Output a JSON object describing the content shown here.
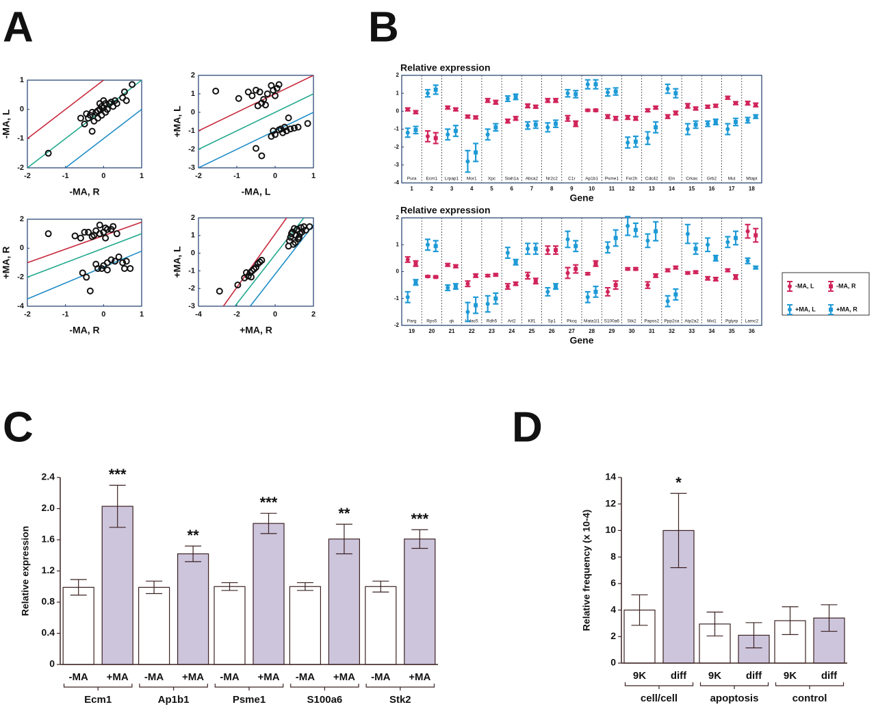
{
  "panel_labels": [
    "A",
    "B",
    "C",
    "D"
  ],
  "chart_data": [
    {
      "type": "scatter",
      "xlabel": "-MA, R",
      "ylabel": "-MA, L",
      "xlim": [
        -2,
        1
      ],
      "ylim": [
        -2,
        1
      ],
      "xticks": [
        -2,
        -1,
        0,
        1
      ],
      "yticks": [
        -2,
        -1,
        0,
        1
      ],
      "marker_color": "#111111",
      "x": [
        -1.45,
        -0.5,
        -0.4,
        -0.3,
        -0.35,
        -0.3,
        -0.2,
        -0.15,
        -0.1,
        -0.05,
        0,
        -0.1,
        0,
        0.05,
        -0.05,
        0.1,
        0.15,
        0.2,
        0.3,
        0.25,
        0.35,
        0.5,
        0.55,
        0.6,
        0.75,
        -0.25,
        -0.45,
        -0.6,
        -0.15,
        0.05
      ],
      "values": [
        -1.5,
        -0.5,
        -0.3,
        -0.75,
        -0.2,
        -0.1,
        -0.1,
        -0.3,
        0,
        0.1,
        0.05,
        0.2,
        0.3,
        0.2,
        -0.2,
        0,
        0.2,
        0.25,
        0.3,
        0.1,
        0.2,
        0.4,
        0.6,
        0.3,
        0.85,
        -0.4,
        -0.15,
        -0.3,
        -0.05,
        -0.1
      ],
      "lines": [
        {
          "color": "#c8283c",
          "x": [
            -2,
            0
          ],
          "values": [
            -1,
            1
          ]
        },
        {
          "color": "#20a88c",
          "x": [
            -2,
            1
          ],
          "values": [
            -2,
            1
          ]
        },
        {
          "color": "#1e8cc8",
          "x": [
            -1,
            1
          ],
          "values": [
            -2,
            0
          ]
        }
      ]
    },
    {
      "type": "scatter",
      "xlabel": "-MA, L",
      "ylabel": "+MA, L",
      "xlim": [
        -2,
        1
      ],
      "ylim": [
        -3,
        2
      ],
      "xticks": [
        -2,
        -1,
        0,
        1
      ],
      "yticks": [
        -3,
        -2,
        -1,
        0,
        1,
        2
      ],
      "marker_color": "#111111",
      "x": [
        -1.55,
        -0.95,
        -0.7,
        -0.6,
        -0.5,
        -0.4,
        -0.35,
        -0.3,
        -0.25,
        -0.2,
        -0.1,
        -0.05,
        0,
        0.05,
        0.1,
        -0.45,
        -0.5,
        -0.35,
        -0.1,
        -0.05,
        0,
        0.1,
        0.2,
        0.25,
        0.35,
        0.4,
        0.5,
        0.6,
        0.85,
        0.3,
        0.15
      ],
      "values": [
        1.15,
        0.75,
        1.1,
        0.9,
        1.2,
        1.1,
        0.5,
        0.7,
        0.4,
        1.0,
        1.45,
        1.2,
        0.9,
        1.3,
        1.5,
        0.35,
        -1.95,
        -2.35,
        -1.3,
        -1.0,
        -1.2,
        -0.95,
        -1.1,
        -0.8,
        -0.3,
        -0.9,
        -0.85,
        -0.8,
        -0.6,
        -1.0,
        -0.9
      ],
      "lines": [
        {
          "color": "#c8283c",
          "x": [
            -2,
            1
          ],
          "values": [
            -1,
            2
          ]
        },
        {
          "color": "#20a88c",
          "x": [
            -2,
            1
          ],
          "values": [
            -2,
            1
          ]
        },
        {
          "color": "#1e8cc8",
          "x": [
            -2,
            1
          ],
          "values": [
            -3,
            0
          ]
        }
      ]
    },
    {
      "type": "scatter",
      "xlabel": "-MA, R",
      "ylabel": "+MA, R",
      "xlim": [
        -2,
        1
      ],
      "ylim": [
        -4,
        2
      ],
      "xticks": [
        -2,
        -1,
        0,
        1
      ],
      "yticks": [
        -4,
        -2,
        0,
        2
      ],
      "marker_color": "#111111",
      "x": [
        -1.45,
        -0.75,
        -0.6,
        -0.5,
        -0.4,
        -0.3,
        -0.2,
        -0.1,
        0,
        0.05,
        -0.25,
        0.1,
        0.2,
        0.35,
        0.25,
        -0.1,
        0.05,
        -0.55,
        -0.45,
        -0.35,
        -0.2,
        -0.15,
        -0.05,
        0,
        0.1,
        0.2,
        0.3,
        0.4,
        0.5,
        0.55,
        0.6,
        0.7,
        0.1
      ],
      "values": [
        1.0,
        0.85,
        0.7,
        1.1,
        1.1,
        0.8,
        1.2,
        1.0,
        1.1,
        0.7,
        0.9,
        1.3,
        1.3,
        1.0,
        1.5,
        1.6,
        1.4,
        -1.7,
        -2.0,
        -2.95,
        -1.1,
        -1.4,
        -1.4,
        -1.2,
        -1.0,
        -0.8,
        -0.9,
        -0.6,
        -1.0,
        -1.4,
        -0.9,
        -1.4,
        -1.5
      ],
      "lines": [
        {
          "color": "#c8283c",
          "x": [
            -2,
            1
          ],
          "values": [
            -1,
            1.8
          ]
        },
        {
          "color": "#20a88c",
          "x": [
            -2,
            1
          ],
          "values": [
            -2,
            1
          ]
        },
        {
          "color": "#1e8cc8",
          "x": [
            -2,
            1
          ],
          "values": [
            -3.5,
            -0.2
          ]
        }
      ]
    },
    {
      "type": "scatter",
      "xlabel": "+MA, R",
      "ylabel": "+MA, L",
      "xlim": [
        -4,
        2
      ],
      "ylim": [
        -3,
        2
      ],
      "xticks": [
        -4,
        -2,
        0,
        2
      ],
      "yticks": [
        -3,
        -2,
        -1,
        0,
        1,
        2
      ],
      "marker_color": "#111111",
      "x": [
        -2.9,
        -1.95,
        -1.6,
        -1.4,
        -1.3,
        -1.2,
        -1.1,
        -1.0,
        -0.9,
        -0.8,
        -0.7,
        -1.5,
        -1.25,
        0.7,
        0.75,
        0.8,
        0.85,
        0.9,
        1.0,
        1.1,
        1.15,
        1.2,
        1.3,
        1.35,
        1.4,
        1.5,
        1.6,
        0.95,
        1.05,
        1.25,
        1.8
      ],
      "values": [
        -2.15,
        -1.8,
        -1.4,
        -1.3,
        -1.1,
        -1.0,
        -0.9,
        -0.8,
        -0.6,
        -0.5,
        -0.4,
        -1.1,
        -1.35,
        0.4,
        0.7,
        0.9,
        1.1,
        1.2,
        1.4,
        1.0,
        1.35,
        0.8,
        1.1,
        1.45,
        1.2,
        1.5,
        1.3,
        0.5,
        0.6,
        0.9,
        1.5
      ],
      "lines": [
        {
          "color": "#c8283c",
          "x": [
            -2.7,
            0.6
          ],
          "values": [
            -3,
            2
          ]
        },
        {
          "color": "#20a88c",
          "x": [
            -2.1,
            1.5
          ],
          "values": [
            -3,
            2
          ]
        },
        {
          "color": "#1e8cc8",
          "x": [
            -1.3,
            2
          ],
          "values": [
            -3,
            1.6
          ]
        }
      ]
    },
    {
      "type": "errorbar",
      "title": "Relative expression",
      "xlabel": "Gene",
      "categories": [
        "Pura",
        "Ecm1",
        "Lrpap1",
        "Mor1",
        "Xpc",
        "Siah1a",
        "Abca2",
        "Nr2c2",
        "C1r",
        "Ap1b1",
        "Psme1",
        "Fxr2h",
        "Cdc42",
        "Eln",
        "Crkas",
        "Grb2",
        "Mut",
        "Mtapt"
      ],
      "numbers": [
        1,
        2,
        3,
        4,
        5,
        6,
        7,
        8,
        9,
        10,
        11,
        12,
        13,
        14,
        15,
        16,
        17,
        18
      ],
      "ylim": [
        -4,
        2
      ],
      "yticks": [
        -4,
        -3,
        -2,
        -1,
        0,
        1,
        2
      ],
      "series": [
        {
          "color": "#d0245a",
          "marker": "circle",
          "values": [
            0.1,
            -1.4,
            0.2,
            -0.3,
            0.6,
            -0.55,
            0.3,
            0.6,
            -0.4,
            0.05,
            -0.3,
            -0.35,
            0.05,
            -0.3,
            0.3,
            0.25,
            0.75,
            0.45
          ],
          "errors": [
            0.08,
            0.3,
            0.08,
            0.08,
            0.1,
            0.1,
            0.1,
            0.1,
            0.15,
            0.05,
            0.1,
            0.1,
            0.08,
            0.1,
            0.12,
            0.08,
            0.08,
            0.1
          ]
        },
        {
          "color": "#d0245a",
          "marker": "square",
          "values": [
            -0.05,
            -1.5,
            0.1,
            -0.35,
            0.5,
            -0.4,
            0.25,
            0.6,
            -0.7,
            0.05,
            -0.4,
            -0.4,
            0.2,
            -0.1,
            0.15,
            0.3,
            0.45,
            0.35
          ],
          "errors": [
            0.08,
            0.3,
            0.08,
            0.08,
            0.1,
            0.1,
            0.08,
            0.1,
            0.15,
            0.05,
            0.1,
            0.1,
            0.08,
            0.1,
            0.08,
            0.08,
            0.08,
            0.1
          ]
        },
        {
          "color": "#1e9ad6",
          "marker": "circle",
          "values": [
            -1.2,
            1.0,
            -1.3,
            -2.8,
            -1.3,
            0.7,
            -0.8,
            -0.9,
            1.0,
            1.5,
            1.05,
            -1.75,
            -1.5,
            1.25,
            -1.0,
            -0.7,
            -1.0,
            -0.5
          ],
          "errors": [
            0.25,
            0.2,
            0.3,
            0.6,
            0.3,
            0.15,
            0.2,
            0.25,
            0.2,
            0.25,
            0.2,
            0.3,
            0.35,
            0.25,
            0.3,
            0.15,
            0.3,
            0.15
          ]
        },
        {
          "color": "#1e9ad6",
          "marker": "square",
          "values": [
            -1.05,
            1.2,
            -1.1,
            -2.3,
            -0.9,
            0.8,
            -0.75,
            -0.7,
            0.95,
            1.5,
            1.1,
            -1.7,
            -0.9,
            1.0,
            -0.75,
            -0.6,
            -0.6,
            -0.3
          ],
          "errors": [
            0.2,
            0.25,
            0.3,
            0.5,
            0.2,
            0.15,
            0.2,
            0.2,
            0.2,
            0.25,
            0.2,
            0.3,
            0.3,
            0.25,
            0.2,
            0.15,
            0.2,
            0.1
          ]
        }
      ]
    },
    {
      "type": "errorbar",
      "title": "Relative expression",
      "xlabel": "Gene",
      "categories": [
        "Parg",
        "Rps5",
        "qk",
        "Hdac5",
        "Rdh5",
        "Art2",
        "Klf1",
        "Sp1",
        "Pkcq",
        "Mata1l1",
        "S100a6",
        "Stk2",
        "Papss2",
        "Ppp2ca",
        "Atp2a2",
        "Mxi1",
        "Pglyrp",
        "Lamc2"
      ],
      "numbers": [
        19,
        20,
        21,
        22,
        23,
        24,
        25,
        26,
        27,
        28,
        29,
        30,
        31,
        32,
        33,
        34,
        35,
        36
      ],
      "ylim": [
        -2,
        2
      ],
      "yticks": [
        -2,
        -1,
        0,
        1,
        2
      ],
      "series": [
        {
          "name": "-MA, L",
          "color": "#d0245a",
          "marker": "circle",
          "values": [
            0.45,
            -0.18,
            0.25,
            -0.45,
            -0.15,
            -0.55,
            -0.15,
            0.8,
            -0.05,
            -0.08,
            -0.75,
            0.1,
            -0.5,
            0.05,
            -0.05,
            -0.25,
            0.05,
            1.5
          ],
          "errors": [
            0.1,
            0.03,
            0.05,
            0.1,
            0.04,
            0.1,
            0.12,
            0.15,
            0.2,
            0.04,
            0.15,
            0.04,
            0.12,
            0.05,
            0.04,
            0.06,
            0.05,
            0.25
          ]
        },
        {
          "name": "-MA, R",
          "color": "#d0245a",
          "marker": "square",
          "values": [
            0.3,
            -0.2,
            0.2,
            -0.15,
            -0.12,
            -0.45,
            -0.35,
            0.8,
            0.1,
            0.3,
            -0.5,
            0.1,
            -0.15,
            0.15,
            -0.02,
            -0.28,
            -0.2,
            1.35
          ],
          "errors": [
            0.1,
            0.03,
            0.05,
            0.06,
            0.04,
            0.06,
            0.1,
            0.15,
            0.15,
            0.1,
            0.15,
            0.04,
            0.06,
            0.05,
            0.04,
            0.06,
            0.08,
            0.25
          ]
        },
        {
          "name": "+MA, L",
          "color": "#1e9ad6",
          "marker": "circle",
          "values": [
            -0.95,
            1.0,
            -0.6,
            -1.5,
            -1.2,
            0.7,
            0.85,
            -0.75,
            1.2,
            -0.95,
            0.9,
            1.7,
            1.15,
            -1.1,
            1.4,
            1.0,
            1.1,
            0.4
          ],
          "errors": [
            0.2,
            0.2,
            0.1,
            0.35,
            0.3,
            0.2,
            0.2,
            0.15,
            0.3,
            0.2,
            0.2,
            0.35,
            0.25,
            0.2,
            0.35,
            0.25,
            0.2,
            0.1
          ]
        },
        {
          "name": "+MA, R",
          "color": "#1e9ad6",
          "marker": "square",
          "values": [
            -0.4,
            0.95,
            -0.55,
            -1.25,
            -1.0,
            0.35,
            0.85,
            -0.55,
            0.95,
            -0.75,
            1.25,
            1.55,
            1.5,
            -0.85,
            0.85,
            0.5,
            1.25,
            0.15
          ],
          "errors": [
            0.1,
            0.2,
            0.1,
            0.3,
            0.2,
            0.1,
            0.2,
            0.1,
            0.2,
            0.2,
            0.3,
            0.25,
            0.35,
            0.2,
            0.2,
            0.1,
            0.25,
            0.05
          ]
        }
      ]
    },
    {
      "type": "bar",
      "ylabel": "Relative expression",
      "categories": [
        "Ecm1",
        "Ap1b1",
        "Psme1",
        "S100a6",
        "Stk2"
      ],
      "ylim": [
        0,
        2.4
      ],
      "yticks": [
        0,
        0.4,
        0.8,
        1.2,
        1.6,
        {
          "value": 2,
          "label": "2.0"
        },
        2.4
      ],
      "series": [
        {
          "name": "-MA",
          "color": "#ffffff",
          "values": [
            0.99,
            0.99,
            1.0,
            1.0,
            1.0
          ],
          "errors": [
            0.1,
            0.08,
            0.05,
            0.05,
            0.07
          ]
        },
        {
          "name": "+MA",
          "color": "#cdc5dc",
          "values": [
            2.03,
            1.42,
            1.81,
            1.61,
            1.61
          ],
          "errors": [
            0.27,
            0.1,
            0.13,
            0.19,
            0.12
          ]
        }
      ],
      "annotations": [
        "***",
        "**",
        "***",
        "**",
        "***"
      ]
    },
    {
      "type": "bar",
      "ylabel": "Relative frequency (x 10-4)",
      "categories": [
        "cell/cell",
        "apoptosis",
        "control"
      ],
      "ylim": [
        0,
        14
      ],
      "yticks": [
        0,
        2,
        4,
        6,
        8,
        10,
        12,
        14
      ],
      "series": [
        {
          "name": "9K",
          "color": "#ffffff",
          "values": [
            4.0,
            2.95,
            3.2
          ],
          "errors": [
            1.15,
            0.9,
            1.05
          ]
        },
        {
          "name": "diff",
          "color": "#cdc5dc",
          "values": [
            10.0,
            2.1,
            3.4
          ],
          "errors": [
            2.8,
            0.95,
            1.0
          ]
        }
      ],
      "annotations": [
        "*",
        null,
        null
      ]
    }
  ]
}
